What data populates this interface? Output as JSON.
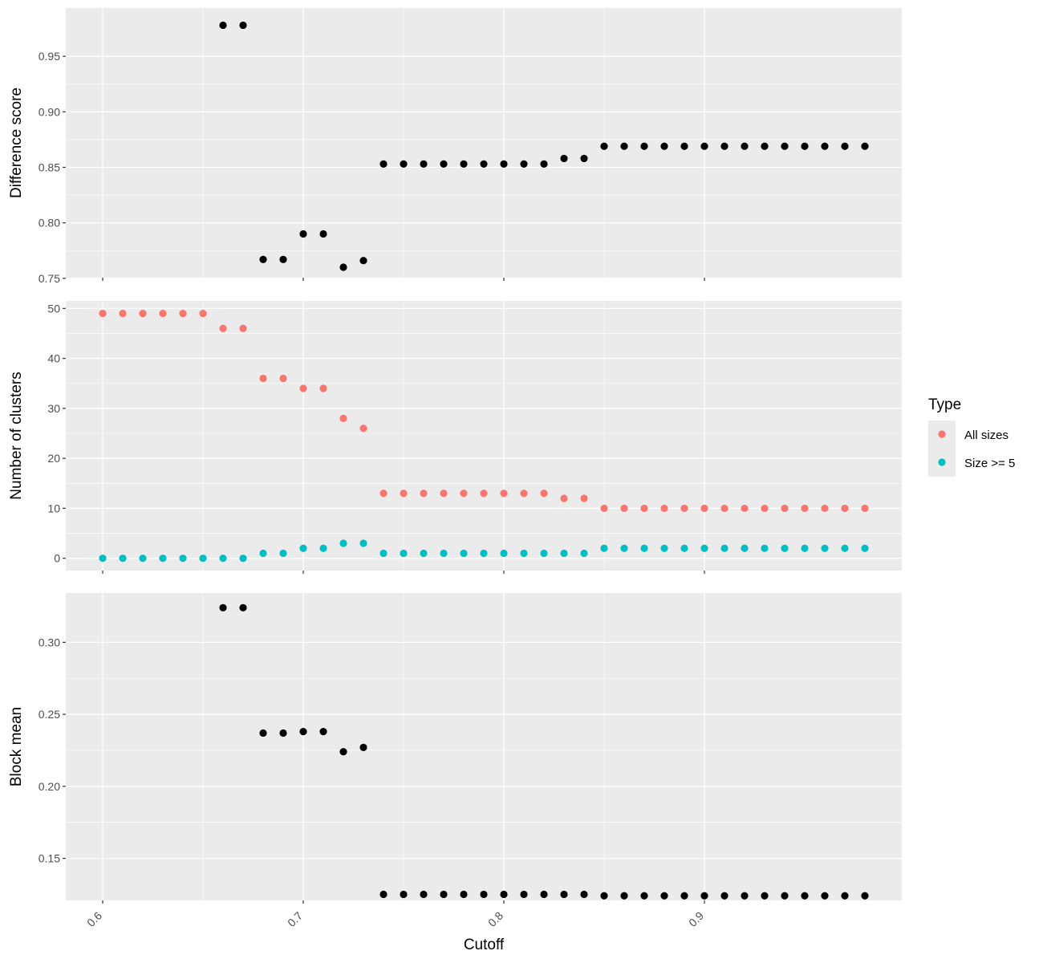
{
  "chart_data": {
    "type": "scatter",
    "xlabel": "Cutoff",
    "x": [
      0.6,
      0.61,
      0.62,
      0.63,
      0.64,
      0.65,
      0.66,
      0.67,
      0.68,
      0.69,
      0.7,
      0.71,
      0.72,
      0.73,
      0.74,
      0.75,
      0.76,
      0.77,
      0.78,
      0.79,
      0.8,
      0.81,
      0.82,
      0.83,
      0.84,
      0.85,
      0.86,
      0.87,
      0.88,
      0.89,
      0.9,
      0.91,
      0.92,
      0.93,
      0.94,
      0.95,
      0.96,
      0.97,
      0.98
    ],
    "xlim": [
      0.5816,
      0.9984
    ],
    "xticks": [
      0.6,
      0.7,
      0.8,
      0.9
    ],
    "xtick_labels": [
      "0.6",
      "0.7",
      "0.8",
      "0.9"
    ],
    "grid": true,
    "panel_background": "#ebebeb",
    "gridline_color": "#ffffff",
    "panels": [
      {
        "ylabel": "Difference score",
        "ylim": [
          0.7506,
          0.9935
        ],
        "yticks": [
          0.75,
          0.8,
          0.85,
          0.9,
          0.95
        ],
        "ytick_labels": [
          "0.75",
          "0.80",
          "0.85",
          "0.90",
          "0.95"
        ],
        "series": [
          {
            "color": "#000000",
            "x_start": 0.66,
            "values": [
              0.978,
              0.978,
              0.767,
              0.767,
              0.79,
              0.79,
              0.76,
              0.766,
              0.853,
              0.853,
              0.853,
              0.853,
              0.853,
              0.853,
              0.853,
              0.853,
              0.853,
              0.858,
              0.858,
              0.869,
              0.869,
              0.869,
              0.869,
              0.869,
              0.869,
              0.869,
              0.869,
              0.869,
              0.869,
              0.869,
              0.869,
              0.869,
              0.869
            ]
          }
        ]
      },
      {
        "ylabel": "Number of clusters",
        "ylim": [
          -2.46,
          51.5
        ],
        "yticks": [
          0,
          10,
          20,
          30,
          40,
          50
        ],
        "ytick_labels": [
          "0",
          "10",
          "20",
          "30",
          "40",
          "50"
        ],
        "series": [
          {
            "name": "All sizes",
            "color": "#f8766d",
            "x_start": 0.6,
            "values": [
              49,
              49,
              49,
              49,
              49,
              49,
              46,
              46,
              36,
              36,
              34,
              34,
              28,
              26,
              13,
              13,
              13,
              13,
              13,
              13,
              13,
              13,
              13,
              12,
              12,
              10,
              10,
              10,
              10,
              10,
              10,
              10,
              10,
              10,
              10,
              10,
              10,
              10,
              10
            ]
          },
          {
            "name": "Size >= 5",
            "color": "#00bfc4",
            "x_start": 0.6,
            "values": [
              0,
              0,
              0,
              0,
              0,
              0,
              0,
              0,
              1,
              1,
              2,
              2,
              3,
              3,
              1,
              1,
              1,
              1,
              1,
              1,
              1,
              1,
              1,
              1,
              1,
              2,
              2,
              2,
              2,
              2,
              2,
              2,
              2,
              2,
              2,
              2,
              2,
              2,
              2
            ]
          }
        ]
      },
      {
        "ylabel": "Block mean",
        "ylim": [
          0.1208,
          0.3342
        ],
        "yticks": [
          0.15,
          0.2,
          0.25,
          0.3
        ],
        "ytick_labels": [
          "0.15",
          "0.20",
          "0.25",
          "0.30"
        ],
        "series": [
          {
            "color": "#000000",
            "x_start": 0.66,
            "values": [
              0.324,
              0.324,
              0.237,
              0.237,
              0.238,
              0.238,
              0.224,
              0.227,
              0.125,
              0.125,
              0.125,
              0.125,
              0.125,
              0.125,
              0.125,
              0.125,
              0.125,
              0.125,
              0.125,
              0.124,
              0.124,
              0.124,
              0.124,
              0.124,
              0.124,
              0.124,
              0.124,
              0.124,
              0.124,
              0.124,
              0.124,
              0.124,
              0.124
            ]
          }
        ]
      }
    ],
    "legend": {
      "title": "Type",
      "placement": "right",
      "entries": [
        {
          "label": "All sizes",
          "color": "#f8766d"
        },
        {
          "label": "Size >= 5",
          "color": "#00bfc4"
        }
      ]
    }
  }
}
